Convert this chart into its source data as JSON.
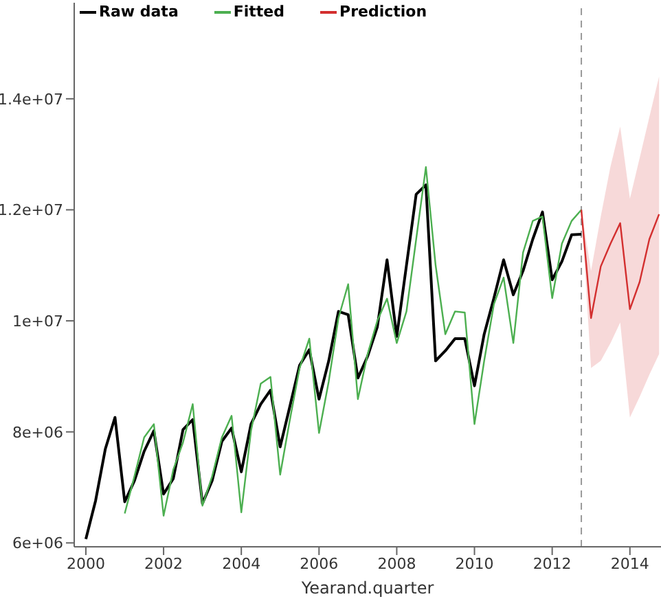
{
  "chart_data": {
    "type": "line",
    "xlabel": "Yearand.quarter",
    "xlim": [
      1999.7,
      2014.8
    ],
    "xticks": [
      2000,
      2002,
      2004,
      2006,
      2008,
      2010,
      2012,
      2014
    ],
    "ylim": [
      5930000,
      15730000
    ],
    "yticks": [
      {
        "value": 6000000,
        "label": "6e+06"
      },
      {
        "value": 8000000,
        "label": "8e+06"
      },
      {
        "value": 10000000,
        "label": "1e+07"
      },
      {
        "value": 12000000,
        "label": "1.2e+07"
      },
      {
        "value": 14000000,
        "label": "1.4e+07"
      }
    ],
    "grid": false,
    "legend": "top left",
    "marker": "none",
    "ref_lines": [
      {
        "axis": "x",
        "value": 2012.75,
        "label": null,
        "color": "#999999",
        "line_style": "dashed"
      }
    ],
    "series": [
      {
        "name": "Raw data",
        "color": "#000000",
        "x": [
          2000,
          2000.25,
          2000.5,
          2000.75,
          2001,
          2001.25,
          2001.5,
          2001.75,
          2002,
          2002.25,
          2002.5,
          2002.75,
          2003,
          2003.25,
          2003.5,
          2003.75,
          2004,
          2004.25,
          2004.5,
          2004.75,
          2005,
          2005.25,
          2005.5,
          2005.75,
          2006,
          2006.25,
          2006.5,
          2006.75,
          2007,
          2007.25,
          2007.5,
          2007.75,
          2008,
          2008.25,
          2008.5,
          2008.75,
          2009,
          2009.25,
          2009.5,
          2009.75,
          2010,
          2010.25,
          2010.5,
          2010.75,
          2011,
          2011.25,
          2011.5,
          2011.75,
          2012,
          2012.25,
          2012.5,
          2012.75
        ],
        "values": [
          6070000,
          6760000,
          7690000,
          8260000,
          6740000,
          7120000,
          7650000,
          8020000,
          6880000,
          7160000,
          8040000,
          8220000,
          6710000,
          7120000,
          7830000,
          8070000,
          7280000,
          8140000,
          8500000,
          8750000,
          7730000,
          8460000,
          9200000,
          9480000,
          8590000,
          9280000,
          10170000,
          10110000,
          8970000,
          9360000,
          9890000,
          11100000,
          9720000,
          11000000,
          12280000,
          12450000,
          9280000,
          9460000,
          9680000,
          9680000,
          8830000,
          9760000,
          10410000,
          11100000,
          10470000,
          10900000,
          11470000,
          11960000,
          10740000,
          11070000,
          11550000,
          11560000
        ]
      },
      {
        "name": "Fitted",
        "color": "#4caf50",
        "x": [
          2001,
          2001.25,
          2001.5,
          2001.75,
          2002,
          2002.25,
          2002.5,
          2002.75,
          2003,
          2003.25,
          2003.5,
          2003.75,
          2004,
          2004.25,
          2004.5,
          2004.75,
          2005,
          2005.25,
          2005.5,
          2005.75,
          2006,
          2006.25,
          2006.5,
          2006.75,
          2007,
          2007.25,
          2007.5,
          2007.75,
          2008,
          2008.25,
          2008.5,
          2008.75,
          2009,
          2009.25,
          2009.5,
          2009.75,
          2010,
          2010.25,
          2010.5,
          2010.75,
          2011,
          2011.25,
          2011.5,
          2011.75,
          2012,
          2012.25,
          2012.5,
          2012.75
        ],
        "values": [
          6530000,
          7200000,
          7900000,
          8140000,
          6490000,
          7320000,
          7810000,
          8500000,
          6670000,
          7200000,
          7900000,
          8290000,
          6550000,
          8020000,
          8870000,
          8990000,
          7230000,
          8220000,
          9150000,
          9680000,
          7980000,
          8910000,
          10050000,
          10660000,
          8590000,
          9400000,
          10000000,
          10400000,
          9600000,
          10170000,
          11470000,
          12770000,
          11000000,
          9760000,
          10170000,
          10150000,
          8140000,
          9280000,
          10300000,
          10780000,
          9600000,
          11230000,
          11800000,
          11880000,
          10410000,
          11390000,
          11800000,
          12000000
        ]
      },
      {
        "name": "Prediction",
        "color": "#d32f2f",
        "x": [
          2012.75,
          2013,
          2013.25,
          2013.5,
          2013.75,
          2014,
          2014.25,
          2014.5,
          2014.75
        ],
        "values": [
          12000000,
          10050000,
          10980000,
          11390000,
          11760000,
          10210000,
          10700000,
          11470000,
          11920000
        ],
        "lower": [
          12000000,
          9150000,
          9280000,
          9600000,
          9970000,
          8260000,
          8630000,
          9030000,
          9400000
        ],
        "upper": [
          12000000,
          10900000,
          11880000,
          12780000,
          13500000,
          12200000,
          12930000,
          13670000,
          14400000
        ]
      }
    ]
  }
}
